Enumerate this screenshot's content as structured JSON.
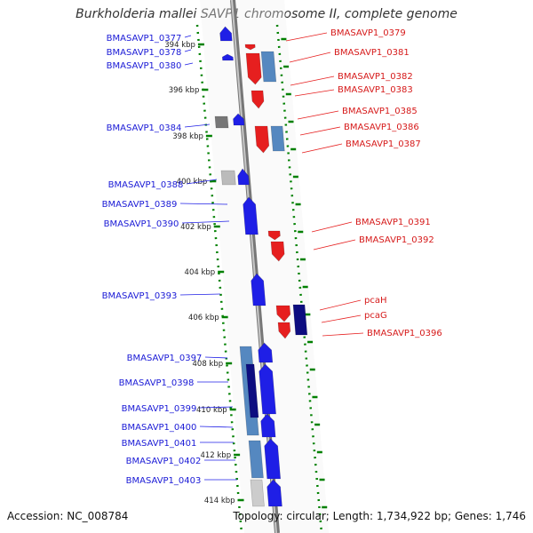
{
  "title": "Burkholderia mallei SAVP1 chromosome II, complete genome",
  "accession": "Accession: NC_008784",
  "topology": "Topology: circular; Length: 1,734,922 bp; Genes: 1,746",
  "ticks": [
    "394 kbp",
    "396 kbp",
    "398 kbp",
    "400 kbp",
    "402 kbp",
    "404 kbp",
    "406 kbp",
    "408 kbp",
    "410 kbp",
    "412 kbp",
    "414 kbp"
  ],
  "colors": {
    "forward": "#1f1fe6",
    "reverse": "#e61f1f",
    "rna_light": "#5588c0",
    "rna_dark": "#0d0d80",
    "gray": "#777777",
    "ruler": "#008000"
  },
  "left_labels": [
    "BMASAVP1_0377",
    "BMASAVP1_0378",
    "BMASAVP1_0380",
    "BMASAVP1_0384",
    "BMASAVP1_0388",
    "BMASAVP1_0389",
    "BMASAVP1_0390",
    "BMASAVP1_0393",
    "BMASAVP1_0397",
    "BMASAVP1_0398",
    "BMASAVP1_0399",
    "BMASAVP1_0400",
    "BMASAVP1_0401",
    "BMASAVP1_0402",
    "BMASAVP1_0403"
  ],
  "right_labels": [
    "BMASAVP1_0379",
    "BMASAVP1_0381",
    "BMASAVP1_0382",
    "BMASAVP1_0383",
    "BMASAVP1_0385",
    "BMASAVP1_0386",
    "BMASAVP1_0387",
    "BMASAVP1_0391",
    "BMASAVP1_0392",
    "pcaH",
    "pcaG",
    "BMASAVP1_0396"
  ]
}
